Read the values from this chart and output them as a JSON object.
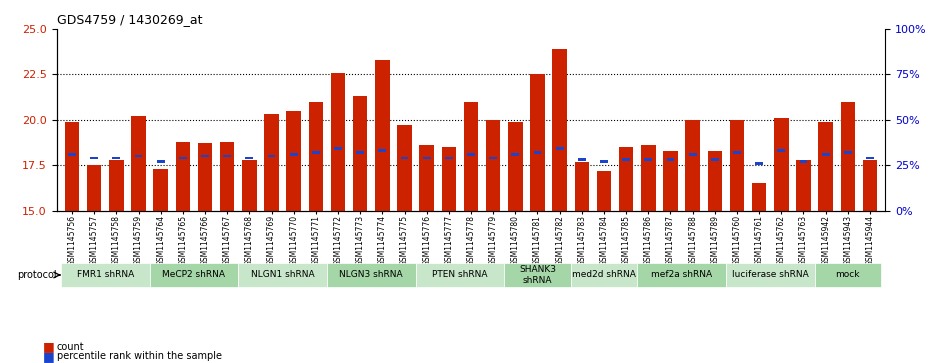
{
  "title": "GDS4759 / 1430269_at",
  "samples": [
    "GSM1145756",
    "GSM1145757",
    "GSM1145758",
    "GSM1145759",
    "GSM1145764",
    "GSM1145765",
    "GSM1145766",
    "GSM1145767",
    "GSM1145768",
    "GSM1145769",
    "GSM1145770",
    "GSM1145771",
    "GSM1145772",
    "GSM1145773",
    "GSM1145774",
    "GSM1145775",
    "GSM1145776",
    "GSM1145777",
    "GSM1145778",
    "GSM1145779",
    "GSM1145780",
    "GSM1145781",
    "GSM1145782",
    "GSM1145783",
    "GSM1145784",
    "GSM1145785",
    "GSM1145786",
    "GSM1145787",
    "GSM1145788",
    "GSM1145789",
    "GSM1145760",
    "GSM1145761",
    "GSM1145762",
    "GSM1145763",
    "GSM1145942",
    "GSM1145943",
    "GSM1145944"
  ],
  "bar_values": [
    19.9,
    17.5,
    17.8,
    20.2,
    17.3,
    18.8,
    18.7,
    18.8,
    17.8,
    20.3,
    20.5,
    21.0,
    22.6,
    21.3,
    23.3,
    19.7,
    18.6,
    18.5,
    21.0,
    20.0,
    19.9,
    22.5,
    23.9,
    17.7,
    17.2,
    18.5,
    18.6,
    18.3,
    20.0,
    18.3,
    20.0,
    16.5,
    20.1,
    17.8,
    19.9,
    21.0,
    17.8
  ],
  "percentile_values": [
    18.1,
    17.9,
    17.9,
    18.0,
    17.7,
    17.9,
    18.0,
    18.0,
    17.9,
    18.0,
    18.1,
    18.2,
    18.4,
    18.2,
    18.3,
    17.9,
    17.9,
    17.9,
    18.1,
    17.9,
    18.1,
    18.2,
    18.4,
    17.8,
    17.7,
    17.8,
    17.8,
    17.8,
    18.1,
    17.8,
    18.2,
    17.6,
    18.3,
    17.7,
    18.1,
    18.2,
    17.9
  ],
  "groups": [
    {
      "label": "FMR1 shRNA",
      "start": 0,
      "end": 4,
      "color": "#c8e6c9"
    },
    {
      "label": "MeCP2 shRNA",
      "start": 4,
      "end": 8,
      "color": "#a5d6a7"
    },
    {
      "label": "NLGN1 shRNA",
      "start": 8,
      "end": 12,
      "color": "#c8e6c9"
    },
    {
      "label": "NLGN3 shRNA",
      "start": 12,
      "end": 16,
      "color": "#a5d6a7"
    },
    {
      "label": "PTEN shRNA",
      "start": 16,
      "end": 20,
      "color": "#c8e6c9"
    },
    {
      "label": "SHANK3\nshRNA",
      "start": 20,
      "end": 23,
      "color": "#a5d6a7"
    },
    {
      "label": "med2d shRNA",
      "start": 23,
      "end": 26,
      "color": "#c8e6c9"
    },
    {
      "label": "mef2a shRNA",
      "start": 26,
      "end": 30,
      "color": "#a5d6a7"
    },
    {
      "label": "luciferase shRNA",
      "start": 30,
      "end": 34,
      "color": "#c8e6c9"
    },
    {
      "label": "mock",
      "start": 34,
      "end": 37,
      "color": "#a5d6a7"
    }
  ],
  "ylim_left": [
    15,
    25
  ],
  "ylim_right": [
    0,
    100
  ],
  "yticks_left": [
    15,
    17.5,
    20,
    22.5,
    25
  ],
  "yticks_right": [
    0,
    25,
    50,
    75,
    100
  ],
  "bar_color": "#cc2200",
  "percentile_color": "#1a44cc",
  "plot_bg": "#ffffff"
}
